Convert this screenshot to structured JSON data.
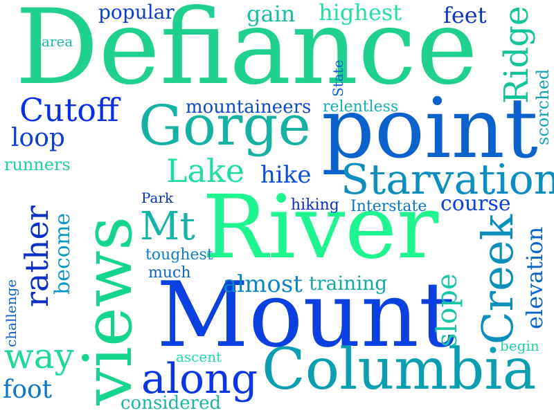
{
  "words": [
    {
      "id": "defiance",
      "text": "Defiance",
      "color": "#1fd08e"
    },
    {
      "id": "river",
      "text": "River",
      "color": "#1ef58f"
    },
    {
      "id": "mount",
      "text": "Mount",
      "color": "#0a3fe0"
    },
    {
      "id": "views",
      "text": "views",
      "color": "#14d58e"
    },
    {
      "id": "point",
      "text": "point",
      "color": "#0c62cc"
    },
    {
      "id": "columbia",
      "text": "Columbia",
      "color": "#0a9fb0"
    },
    {
      "id": "gorge",
      "text": "Gorge",
      "color": "#15b2a4"
    },
    {
      "id": "starvation",
      "text": "Starvation",
      "color": "#0c8fc0"
    },
    {
      "id": "along",
      "text": "along",
      "color": "#0a36e6"
    },
    {
      "id": "creek",
      "text": "Creek",
      "color": "#0a8fbd"
    },
    {
      "id": "ridge",
      "text": "Ridge",
      "color": "#12c598"
    },
    {
      "id": "cutoff",
      "text": "Cutoff",
      "color": "#0a2ee3"
    },
    {
      "id": "lake",
      "text": "Lake",
      "color": "#1fdca0"
    },
    {
      "id": "mt",
      "text": "Mt",
      "color": "#14b4a9"
    },
    {
      "id": "rather",
      "text": "rather",
      "color": "#0b2fc8"
    },
    {
      "id": "slope",
      "text": "slope",
      "color": "#1bc5a8"
    },
    {
      "id": "elevation",
      "text": "elevation",
      "color": "#0c63c8"
    },
    {
      "id": "way",
      "text": "way",
      "color": "#1fd99a"
    },
    {
      "id": "almost",
      "text": "almost",
      "color": "#0c85c2"
    },
    {
      "id": "training",
      "text": "training",
      "color": "#14a7a8"
    },
    {
      "id": "mountaineers",
      "text": "mountaineers",
      "color": "#0d47d2"
    },
    {
      "id": "hike",
      "text": "hike",
      "color": "#0a4ed8"
    },
    {
      "id": "highest",
      "text": "highest",
      "color": "#23dfa2"
    },
    {
      "id": "popular",
      "text": "popular",
      "color": "#0c3dcb"
    },
    {
      "id": "gain",
      "text": "gain",
      "color": "#16bfa2"
    },
    {
      "id": "feet",
      "text": "feet",
      "color": "#0d36bd"
    },
    {
      "id": "loop",
      "text": "loop",
      "color": "#0c3ed2"
    },
    {
      "id": "become",
      "text": "become",
      "color": "#0d96c5"
    },
    {
      "id": "foot",
      "text": "foot",
      "color": "#0a77c7"
    },
    {
      "id": "course",
      "text": "course",
      "color": "#0a3fd5"
    },
    {
      "id": "considered",
      "text": "considered",
      "color": "#1ab5a0"
    },
    {
      "id": "runners",
      "text": "runners",
      "color": "#19d494"
    },
    {
      "id": "relentless",
      "text": "relentless",
      "color": "#14aeb0"
    },
    {
      "id": "scorched",
      "text": "scorched",
      "color": "#12a4b1"
    },
    {
      "id": "toughest",
      "text": "toughest",
      "color": "#0e7ccc"
    },
    {
      "id": "much",
      "text": "much",
      "color": "#0c62c5"
    },
    {
      "id": "hiking",
      "text": "hiking",
      "color": "#0a2fc3"
    },
    {
      "id": "interstate",
      "text": "Interstate",
      "color": "#0c72c6"
    },
    {
      "id": "park",
      "text": "Park",
      "color": "#0a30be"
    },
    {
      "id": "state",
      "text": "State",
      "color": "#0b5ed0"
    },
    {
      "id": "area",
      "text": "area",
      "color": "#18b9a3"
    },
    {
      "id": "challenge",
      "text": "challenge",
      "color": "#0c62c4"
    },
    {
      "id": "ascent",
      "text": "ascent",
      "color": "#1cdca3"
    },
    {
      "id": "begin",
      "text": "begin",
      "color": "#1ed3a0"
    }
  ]
}
